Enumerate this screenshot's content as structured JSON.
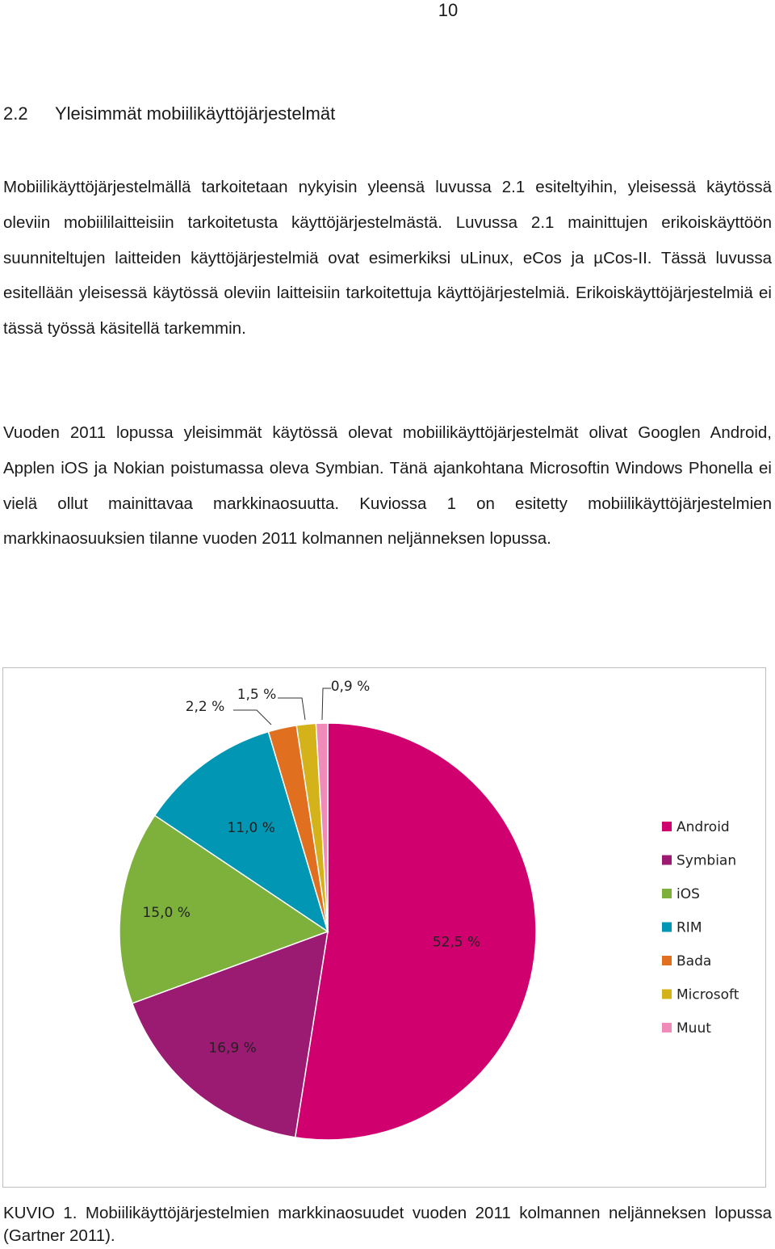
{
  "page_number": "10",
  "section": {
    "number": "2.2",
    "title": "Yleisimmät mobiilikäyttöjärjestelmät"
  },
  "paragraphs": [
    "Mobiilikäyttöjärjestelmällä tarkoitetaan nykyisin yleensä luvussa 2.1 esiteltyihin, yleisessä käytössä oleviin mobiililaitteisiin tarkoitetusta käyttöjärjestelmästä. Luvussa 2.1 mainittujen erikoiskäyttöön suunniteltujen laitteiden käyttöjärjestelmiä ovat esimerkiksi uLinux, eCos ja µCos-II. Tässä luvussa esitellään yleisessä käytössä oleviin laitteisiin tarkoitettuja käyttöjärjestelmiä. Erikoiskäyttöjärjestelmiä ei tässä työssä käsitellä tarkemmin.",
    "Vuoden 2011 lopussa yleisimmät käytössä olevat mobiilikäyttöjärjestelmät olivat Googlen Android, Applen iOS ja Nokian poistumassa oleva Symbian. Tänä ajankohtana Microsoftin Windows Phonella ei vielä ollut mainittavaa markkinaosuutta. Kuviossa 1 on esitetty mobiilikäyttöjärjestelmien markkinaosuuksien tilanne vuoden 2011 kolmannen neljänneksen lopussa."
  ],
  "caption": "KUVIO 1. Mobiilikäyttöjärjestelmien markkinaosuudet vuoden 2011 kolmannen neljänneksen lopussa (Gartner 2011).",
  "chart_data": {
    "type": "pie",
    "categories": [
      "Android",
      "Symbian",
      "iOS",
      "RIM",
      "Bada",
      "Microsoft",
      "Muut"
    ],
    "values": [
      52.5,
      16.9,
      15.0,
      11.0,
      2.2,
      1.5,
      0.9
    ],
    "data_labels": [
      "52,5 %",
      "16,9 %",
      "15,0 %",
      "11,0 %",
      "2,2 %",
      "1,5 %",
      "0,9 %"
    ],
    "colors": [
      "#d1006f",
      "#9b1a72",
      "#7db13c",
      "#0096b4",
      "#e07020",
      "#d4b21a",
      "#f08ab8"
    ],
    "start_angle_deg": 0,
    "direction": "clockwise",
    "legend_position": "right"
  }
}
